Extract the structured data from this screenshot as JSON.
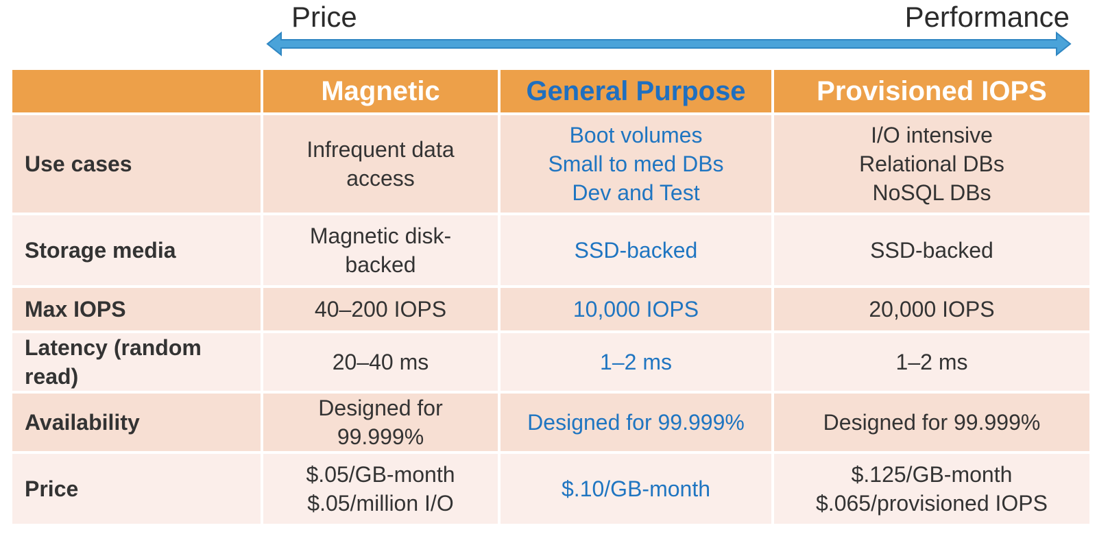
{
  "scale": {
    "left_label": "Price",
    "right_label": "Performance",
    "arrow_color": "#4aa3d9"
  },
  "colors": {
    "header_bg": "#eda049",
    "row_dark": "#f7dfd3",
    "row_light": "#fbeeea",
    "general_purpose_text": "#1f75c1"
  },
  "table": {
    "columns": [
      "",
      "Magnetic",
      "General Purpose",
      "Provisioned IOPS"
    ],
    "rows": [
      {
        "label": "Use cases",
        "magnetic": [
          "Infrequent data",
          "access"
        ],
        "general_purpose": [
          "Boot volumes",
          "Small to med DBs",
          "Dev and Test"
        ],
        "provisioned": [
          "I/O intensive",
          "Relational DBs",
          "NoSQL DBs"
        ]
      },
      {
        "label": "Storage media",
        "magnetic": [
          "Magnetic disk-",
          "backed"
        ],
        "general_purpose": [
          "SSD-backed"
        ],
        "provisioned": [
          "SSD-backed"
        ]
      },
      {
        "label": "Max IOPS",
        "magnetic": [
          "40–200 IOPS"
        ],
        "general_purpose": [
          "10,000 IOPS"
        ],
        "provisioned": [
          "20,000 IOPS"
        ]
      },
      {
        "label": "Latency (random read)",
        "magnetic": [
          "20–40 ms"
        ],
        "general_purpose": [
          "1–2 ms"
        ],
        "provisioned": [
          "1–2 ms"
        ]
      },
      {
        "label": "Availability",
        "magnetic": [
          "Designed for",
          "99.999%"
        ],
        "general_purpose": [
          "Designed for 99.999%"
        ],
        "provisioned": [
          "Designed for 99.999%"
        ]
      },
      {
        "label": "Price",
        "magnetic": [
          "$.05/GB-month",
          "$.05/million I/O"
        ],
        "general_purpose": [
          "$.10/GB-month"
        ],
        "provisioned": [
          "$.125/GB-month",
          "$.065/provisioned IOPS"
        ]
      }
    ]
  }
}
